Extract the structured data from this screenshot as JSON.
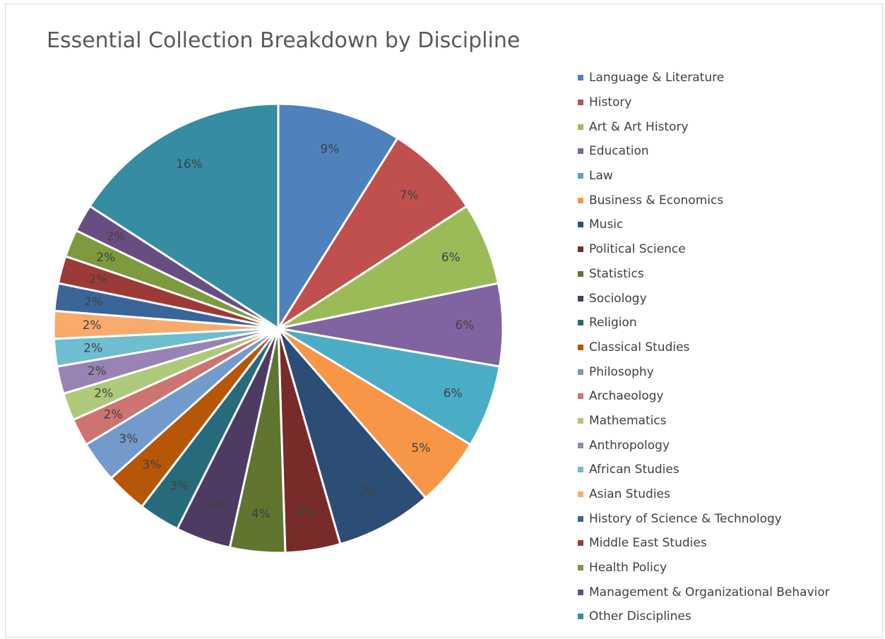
{
  "chart_data": {
    "type": "pie",
    "title": "Essential Collection Breakdown by Discipline",
    "legend_position": "right",
    "slices": [
      {
        "name": "Language & Literature",
        "value": 9,
        "label": "9%",
        "color": "#4f81bd"
      },
      {
        "name": "History",
        "value": 7,
        "label": "7%",
        "color": "#c0504d"
      },
      {
        "name": "Art & Art History",
        "value": 6,
        "label": "6%",
        "color": "#9bbb59"
      },
      {
        "name": "Education",
        "value": 6,
        "label": "6%",
        "color": "#8064a2"
      },
      {
        "name": "Law",
        "value": 6,
        "label": "6%",
        "color": "#4bacc6"
      },
      {
        "name": "Business & Economics",
        "value": 5,
        "label": "5%",
        "color": "#f79646"
      },
      {
        "name": "Music",
        "value": 7,
        "label": "7%",
        "color": "#2c4d75"
      },
      {
        "name": "Political Science",
        "value": 4,
        "label": "4%",
        "color": "#772c2a"
      },
      {
        "name": "Statistics",
        "value": 4,
        "label": "4%",
        "color": "#5f7530"
      },
      {
        "name": "Sociology",
        "value": 4,
        "label": "4%",
        "color": "#4d3b62"
      },
      {
        "name": "Religion",
        "value": 3,
        "label": "3%",
        "color": "#276a7c"
      },
      {
        "name": "Classical Studies",
        "value": 3,
        "label": "3%",
        "color": "#b65708"
      },
      {
        "name": "Philosophy",
        "value": 3,
        "label": "3%",
        "color": "#729aca"
      },
      {
        "name": "Archaeology",
        "value": 2,
        "label": "2%",
        "color": "#cd7371"
      },
      {
        "name": "Mathematics",
        "value": 2,
        "label": "2%",
        "color": "#afc97a"
      },
      {
        "name": "Anthropology",
        "value": 2,
        "label": "2%",
        "color": "#9983b5"
      },
      {
        "name": "African Studies",
        "value": 2,
        "label": "2%",
        "color": "#6fbdd1"
      },
      {
        "name": "Asian Studies",
        "value": 2,
        "label": "2%",
        "color": "#f9ab6b"
      },
      {
        "name": "History of Science & Technology",
        "value": 2,
        "label": "2%",
        "color": "#3a6599"
      },
      {
        "name": "Middle East Studies",
        "value": 2,
        "label": "2%",
        "color": "#9c3a38"
      },
      {
        "name": "Health Policy",
        "value": 2,
        "label": "2%",
        "color": "#7d9a3f"
      },
      {
        "name": "Management & Organizational Behavior",
        "value": 2,
        "label": "2%",
        "color": "#664e82"
      },
      {
        "name": "Other Disciplines",
        "value": 16,
        "label": "16%",
        "color": "#358ca3"
      }
    ]
  }
}
